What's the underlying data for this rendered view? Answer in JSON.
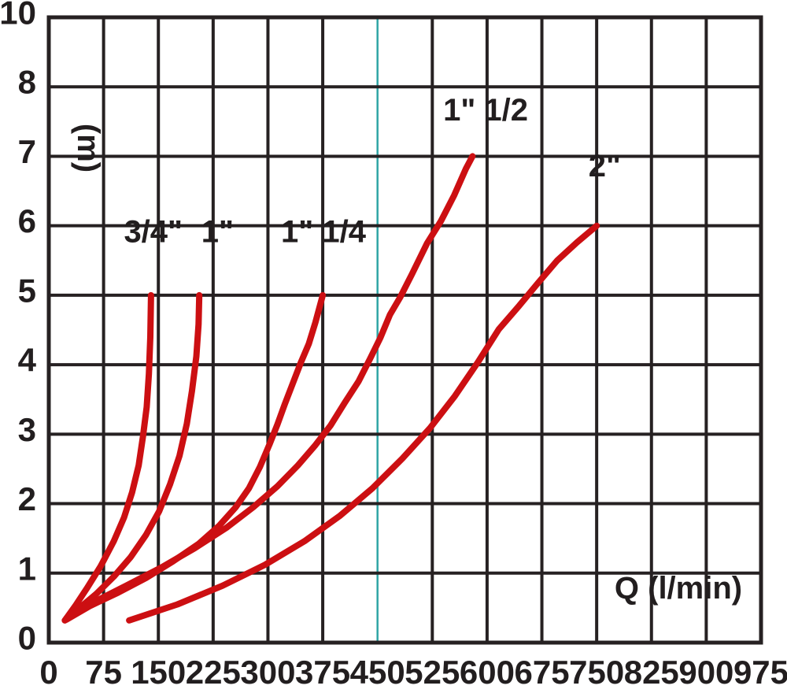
{
  "chart_data": {
    "type": "line",
    "title": "",
    "xlabel": "Q (l/min)",
    "ylabel": "(m)",
    "x_range": [
      0,
      975
    ],
    "y_range": [
      0,
      10
    ],
    "grid": true,
    "x_ticks": [
      0,
      75,
      150,
      225,
      300,
      375,
      450,
      525,
      600,
      675,
      750,
      825,
      900,
      975
    ],
    "y_tick_labels": [
      "10",
      "8",
      "7",
      "6",
      "5",
      "4",
      "3",
      "2",
      "1",
      "0"
    ],
    "guide_line_q": 450,
    "legend_position": "labels-on-curves",
    "colors": {
      "curve": "#cc0f12",
      "grid": "#262122",
      "guide": "#2fa5a5",
      "text": "#221e1f",
      "background": "#ffffff"
    },
    "series": [
      {
        "name": "pipe-3-4-inch",
        "label": "3/4\"",
        "label_q": 143,
        "label_m": 5.91,
        "points": [
          [
            22,
            0.32
          ],
          [
            37,
            0.54
          ],
          [
            52,
            0.78
          ],
          [
            71,
            1.1
          ],
          [
            89,
            1.46
          ],
          [
            103,
            1.8
          ],
          [
            114,
            2.16
          ],
          [
            123,
            2.55
          ],
          [
            129,
            2.97
          ],
          [
            134,
            3.39
          ],
          [
            137,
            3.87
          ],
          [
            139,
            4.4
          ],
          [
            140,
            5.0
          ]
        ]
      },
      {
        "name": "pipe-1-inch",
        "label": "1\"",
        "label_q": 231,
        "label_m": 5.91,
        "points": [
          [
            22,
            0.32
          ],
          [
            41,
            0.49
          ],
          [
            65,
            0.7
          ],
          [
            89,
            0.95
          ],
          [
            112,
            1.23
          ],
          [
            133,
            1.55
          ],
          [
            151,
            1.89
          ],
          [
            166,
            2.28
          ],
          [
            179,
            2.69
          ],
          [
            189,
            3.15
          ],
          [
            196,
            3.62
          ],
          [
            202,
            4.12
          ],
          [
            205,
            4.58
          ],
          [
            206,
            5.0
          ]
        ]
      },
      {
        "name": "pipe-1-1-4-inch",
        "label": "1\" 1/4",
        "label_q": 376,
        "label_m": 5.91,
        "points": [
          [
            24,
            0.33
          ],
          [
            57,
            0.53
          ],
          [
            95,
            0.72
          ],
          [
            133,
            0.93
          ],
          [
            170,
            1.17
          ],
          [
            205,
            1.42
          ],
          [
            233,
            1.68
          ],
          [
            256,
            1.95
          ],
          [
            274,
            2.22
          ],
          [
            289,
            2.53
          ],
          [
            302,
            2.85
          ],
          [
            313,
            3.14
          ],
          [
            323,
            3.43
          ],
          [
            334,
            3.73
          ],
          [
            345,
            4.03
          ],
          [
            356,
            4.3
          ],
          [
            365,
            4.61
          ],
          [
            375,
            5.0
          ]
        ]
      },
      {
        "name": "pipe-1-1-2-inch",
        "label": "1\" 1/2",
        "label_q": 598,
        "label_m": 7.66,
        "points": [
          [
            24,
            0.35
          ],
          [
            63,
            0.59
          ],
          [
            106,
            0.82
          ],
          [
            154,
            1.08
          ],
          [
            200,
            1.36
          ],
          [
            244,
            1.66
          ],
          [
            280,
            1.95
          ],
          [
            313,
            2.25
          ],
          [
            341,
            2.55
          ],
          [
            364,
            2.83
          ],
          [
            386,
            3.13
          ],
          [
            405,
            3.45
          ],
          [
            424,
            3.76
          ],
          [
            440,
            4.09
          ],
          [
            454,
            4.39
          ],
          [
            467,
            4.72
          ],
          [
            481,
            4.97
          ],
          [
            497,
            5.3
          ],
          [
            518,
            5.75
          ],
          [
            537,
            6.07
          ],
          [
            555,
            6.44
          ],
          [
            571,
            6.82
          ],
          [
            580,
            7.0
          ]
        ]
      },
      {
        "name": "pipe-2-inch",
        "label": "2\"",
        "label_q": 761,
        "label_m": 6.86,
        "points": [
          [
            110,
            0.32
          ],
          [
            176,
            0.55
          ],
          [
            238,
            0.82
          ],
          [
            296,
            1.12
          ],
          [
            350,
            1.46
          ],
          [
            399,
            1.83
          ],
          [
            443,
            2.22
          ],
          [
            484,
            2.65
          ],
          [
            522,
            3.09
          ],
          [
            556,
            3.55
          ],
          [
            587,
            4.03
          ],
          [
            616,
            4.51
          ],
          [
            644,
            4.85
          ],
          [
            670,
            5.18
          ],
          [
            696,
            5.5
          ],
          [
            723,
            5.76
          ],
          [
            750,
            6.0
          ]
        ]
      }
    ]
  }
}
